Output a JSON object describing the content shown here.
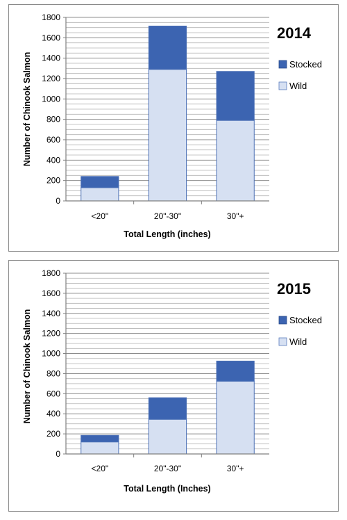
{
  "chart_data": [
    {
      "type": "bar",
      "stacked": true,
      "title": "2014",
      "categories": [
        "<20\"",
        "20\"-30\"",
        "30\"+"
      ],
      "series": [
        {
          "name": "Wild",
          "color": "#d6e0f2",
          "values": [
            130,
            1290,
            790
          ]
        },
        {
          "name": "Stocked",
          "color": "#3c64b1",
          "values": [
            110,
            425,
            480
          ]
        }
      ],
      "xlabel": "Total Length (inches)",
      "ylabel": "Number of Chinook Salmon",
      "ylim": [
        0,
        1800
      ],
      "yticks": [
        "0",
        "200",
        "400",
        "600",
        "800",
        "1000",
        "1200",
        "1400",
        "1600",
        "1800"
      ],
      "grid": true,
      "legend": "right"
    },
    {
      "type": "bar",
      "stacked": true,
      "title": "2015",
      "categories": [
        "<20\"",
        "20\"-30\"",
        "30\"+"
      ],
      "series": [
        {
          "name": "Wild",
          "color": "#d6e0f2",
          "values": [
            120,
            345,
            725
          ]
        },
        {
          "name": "Stocked",
          "color": "#3c64b1",
          "values": [
            65,
            215,
            200
          ]
        }
      ],
      "xlabel": "Total Length (Inches)",
      "ylabel": "Number of Chinook Salmon",
      "ylim": [
        0,
        1800
      ],
      "yticks": [
        "0",
        "200",
        "400",
        "600",
        "800",
        "1000",
        "1200",
        "1400",
        "1600",
        "1800"
      ],
      "grid": true,
      "legend": "right"
    }
  ]
}
